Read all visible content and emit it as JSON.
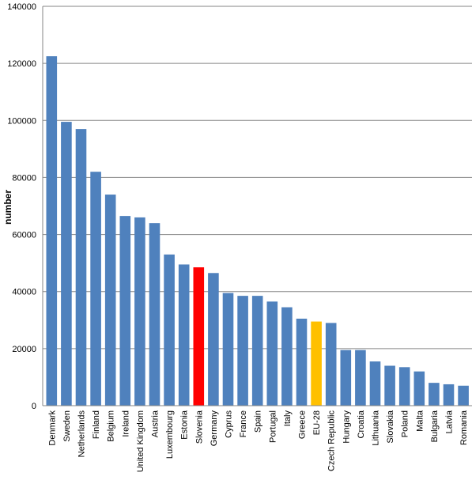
{
  "chart_data": {
    "type": "bar",
    "title": "",
    "xlabel": "",
    "ylabel": "number",
    "ylim": [
      0,
      140000
    ],
    "yticks": [
      "0",
      "20000",
      "40000",
      "60000",
      "80000",
      "100000",
      "120000",
      "140000"
    ],
    "grid": true,
    "legend": "none",
    "categories": [
      "Denmark",
      "Sweden",
      "Netherlands",
      "Finland",
      "Belgium",
      "Ireland",
      "United Kingdom",
      "Austria",
      "Luxembourg",
      "Estonia",
      "Slovenia",
      "Germany",
      "Cyprus",
      "France",
      "Spain",
      "Portugal",
      "Italy",
      "Greece",
      "EU-28",
      "Czech Republic",
      "Hungary",
      "Croatia",
      "Lithuania",
      "Slovakia",
      "Poland",
      "Malta",
      "Bulgaria",
      "Latvia",
      "Romania"
    ],
    "values": [
      122500,
      99500,
      97000,
      82000,
      74000,
      66500,
      66000,
      64000,
      53000,
      49500,
      48500,
      46500,
      39500,
      38500,
      38500,
      36500,
      34500,
      30500,
      29500,
      29000,
      19500,
      19500,
      15500,
      14000,
      13500,
      12000,
      8000,
      7500,
      7000
    ],
    "colors": {
      "default": "#4F81BD",
      "Slovenia": "#FF0000",
      "EU-28": "#FFC000"
    }
  }
}
